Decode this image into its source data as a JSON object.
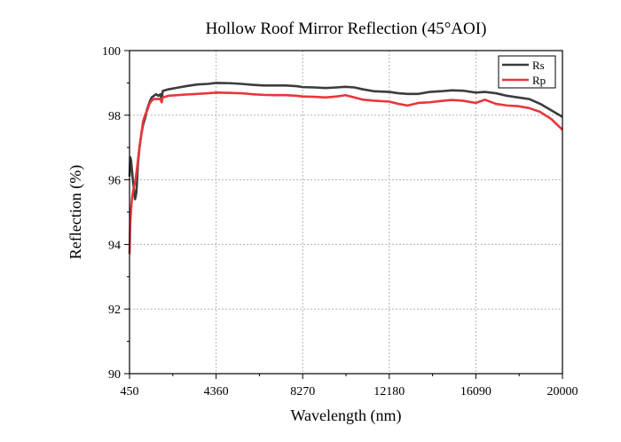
{
  "chart_data": {
    "type": "line",
    "title": "Hollow Roof Mirror Reflection (45°AOI)",
    "xlabel": "Wavelength (nm)",
    "ylabel": "Reflection (%)",
    "xlim": [
      450,
      20000
    ],
    "ylim": [
      90,
      100
    ],
    "x_ticks": [
      450,
      4360,
      8270,
      12180,
      16090,
      20000
    ],
    "y_ticks": [
      90,
      92,
      94,
      96,
      98,
      100
    ],
    "grid": true,
    "legend_position": "top-right",
    "series": [
      {
        "name": "Rs",
        "color": "#3c3c3c",
        "points": [
          [
            450,
            96.1
          ],
          [
            480,
            96.7
          ],
          [
            520,
            96.6
          ],
          [
            560,
            96.3
          ],
          [
            600,
            96.0
          ],
          [
            650,
            95.7
          ],
          [
            700,
            95.4
          ],
          [
            760,
            95.6
          ],
          [
            830,
            96.5
          ],
          [
            900,
            97.0
          ],
          [
            980,
            97.4
          ],
          [
            1060,
            97.7
          ],
          [
            1150,
            97.9
          ],
          [
            1250,
            98.2
          ],
          [
            1350,
            98.4
          ],
          [
            1450,
            98.55
          ],
          [
            1550,
            98.6
          ],
          [
            1650,
            98.65
          ],
          [
            1750,
            98.6
          ],
          [
            1850,
            98.65
          ],
          [
            1900,
            98.45
          ],
          [
            1950,
            98.75
          ],
          [
            2200,
            98.8
          ],
          [
            2600,
            98.85
          ],
          [
            3000,
            98.9
          ],
          [
            3500,
            98.95
          ],
          [
            4000,
            98.97
          ],
          [
            4360,
            99.0
          ],
          [
            5000,
            98.99
          ],
          [
            5500,
            98.97
          ],
          [
            6000,
            98.94
          ],
          [
            6500,
            98.92
          ],
          [
            7000,
            98.92
          ],
          [
            7500,
            98.92
          ],
          [
            8000,
            98.9
          ],
          [
            8270,
            98.87
          ],
          [
            8800,
            98.86
          ],
          [
            9300,
            98.84
          ],
          [
            9800,
            98.86
          ],
          [
            10200,
            98.88
          ],
          [
            10600,
            98.86
          ],
          [
            11000,
            98.8
          ],
          [
            11500,
            98.74
          ],
          [
            12180,
            98.72
          ],
          [
            12600,
            98.68
          ],
          [
            13000,
            98.66
          ],
          [
            13500,
            98.66
          ],
          [
            14000,
            98.72
          ],
          [
            14500,
            98.74
          ],
          [
            15000,
            98.77
          ],
          [
            15500,
            98.76
          ],
          [
            16090,
            98.7
          ],
          [
            16500,
            98.72
          ],
          [
            17000,
            98.68
          ],
          [
            17500,
            98.6
          ],
          [
            18000,
            98.55
          ],
          [
            18500,
            98.5
          ],
          [
            19000,
            98.35
          ],
          [
            19500,
            98.15
          ],
          [
            20000,
            97.95
          ]
        ]
      },
      {
        "name": "Rp",
        "color": "#e8363a",
        "points": [
          [
            450,
            93.7
          ],
          [
            480,
            94.6
          ],
          [
            520,
            95.1
          ],
          [
            560,
            95.4
          ],
          [
            600,
            95.6
          ],
          [
            650,
            95.8
          ],
          [
            700,
            95.9
          ],
          [
            760,
            96.2
          ],
          [
            830,
            96.6
          ],
          [
            900,
            97.0
          ],
          [
            980,
            97.4
          ],
          [
            1060,
            97.8
          ],
          [
            1150,
            98.0
          ],
          [
            1250,
            98.15
          ],
          [
            1350,
            98.35
          ],
          [
            1450,
            98.45
          ],
          [
            1550,
            98.5
          ],
          [
            1650,
            98.5
          ],
          [
            1750,
            98.5
          ],
          [
            1850,
            98.5
          ],
          [
            1900,
            98.4
          ],
          [
            1950,
            98.55
          ],
          [
            2200,
            98.6
          ],
          [
            2600,
            98.62
          ],
          [
            3000,
            98.64
          ],
          [
            3500,
            98.66
          ],
          [
            4000,
            98.68
          ],
          [
            4360,
            98.7
          ],
          [
            5000,
            98.69
          ],
          [
            5500,
            98.68
          ],
          [
            6000,
            98.65
          ],
          [
            6500,
            98.63
          ],
          [
            7000,
            98.62
          ],
          [
            7500,
            98.62
          ],
          [
            8000,
            98.6
          ],
          [
            8270,
            98.58
          ],
          [
            8800,
            98.57
          ],
          [
            9300,
            98.55
          ],
          [
            9800,
            98.58
          ],
          [
            10200,
            98.62
          ],
          [
            10600,
            98.55
          ],
          [
            11000,
            98.48
          ],
          [
            11500,
            98.45
          ],
          [
            12180,
            98.42
          ],
          [
            12600,
            98.35
          ],
          [
            13000,
            98.3
          ],
          [
            13500,
            98.38
          ],
          [
            14000,
            98.4
          ],
          [
            14500,
            98.44
          ],
          [
            15000,
            98.47
          ],
          [
            15500,
            98.45
          ],
          [
            16090,
            98.38
          ],
          [
            16500,
            98.48
          ],
          [
            17000,
            98.35
          ],
          [
            17500,
            98.3
          ],
          [
            18000,
            98.28
          ],
          [
            18500,
            98.22
          ],
          [
            19000,
            98.1
          ],
          [
            19500,
            97.88
          ],
          [
            20000,
            97.55
          ]
        ]
      }
    ]
  }
}
